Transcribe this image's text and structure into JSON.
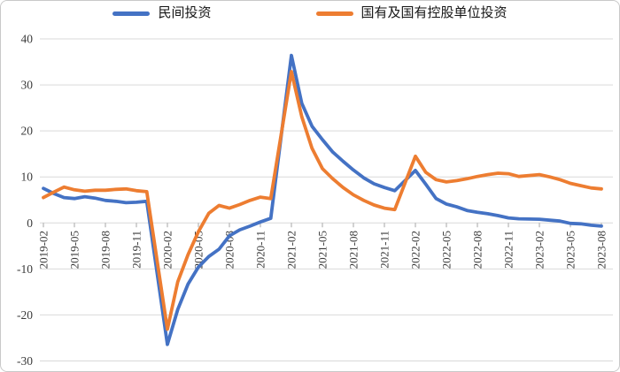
{
  "legend": [
    {
      "label": "民间投资",
      "color": "#4472C4"
    },
    {
      "label": "国有及国有控股单位投资",
      "color": "#ED7D31"
    }
  ],
  "axis": {
    "y_tick_labels": [
      "40",
      "30",
      "20",
      "10",
      "0",
      "-10",
      "-20",
      "-30"
    ],
    "x_tick_labels": [
      "2019-02",
      "2019-05",
      "2019-08",
      "2019-11",
      "2020-02",
      "2020-05",
      "2020-08",
      "2020-11",
      "2021-02",
      "2021-05",
      "2021-08",
      "2021-11",
      "2022-02",
      "2022-05",
      "2022-08",
      "2022-11",
      "2023-02",
      "2023-05",
      "2023-08"
    ]
  },
  "colors": {
    "grid": "#d9d9d9",
    "axis_line": "#d9d9d9",
    "tick": "#a6a6a6",
    "label_text": "#3b3b3b",
    "series_private": "#4472C4",
    "series_soe": "#ED7D31",
    "card_border": "#c9c9c9",
    "background": "#ffffff"
  },
  "chart_data": {
    "type": "line",
    "title": "",
    "xlabel": "",
    "ylabel": "",
    "ylim": [
      -30,
      40
    ],
    "ytick_interval": 10,
    "grid": "horizontal",
    "legend_position": "top",
    "x_axis_type": "monthly dates, January omitted each year",
    "x": [
      "2019-02",
      "2019-03",
      "2019-04",
      "2019-05",
      "2019-06",
      "2019-07",
      "2019-08",
      "2019-09",
      "2019-10",
      "2019-11",
      "2019-12",
      "2020-02",
      "2020-03",
      "2020-04",
      "2020-05",
      "2020-06",
      "2020-07",
      "2020-08",
      "2020-09",
      "2020-10",
      "2020-11",
      "2020-12",
      "2021-02",
      "2021-03",
      "2021-04",
      "2021-05",
      "2021-06",
      "2021-07",
      "2021-08",
      "2021-09",
      "2021-10",
      "2021-11",
      "2021-12",
      "2022-02",
      "2022-03",
      "2022-04",
      "2022-05",
      "2022-06",
      "2022-07",
      "2022-08",
      "2022-09",
      "2022-10",
      "2022-11",
      "2022-12",
      "2023-02",
      "2023-03",
      "2023-04",
      "2023-05",
      "2023-06",
      "2023-07",
      "2023-08"
    ],
    "series": [
      {
        "name": "民间投资",
        "color": "#4472C4",
        "values": [
          7.5,
          6.4,
          5.5,
          5.3,
          5.7,
          5.4,
          4.9,
          4.7,
          4.4,
          4.5,
          4.7,
          -26.4,
          -18.8,
          -13.3,
          -9.6,
          -7.3,
          -5.7,
          -2.8,
          -1.5,
          -0.7,
          0.2,
          1.0,
          36.4,
          26.0,
          21.0,
          18.1,
          15.4,
          13.4,
          11.5,
          9.8,
          8.5,
          7.7,
          7.0,
          11.4,
          8.4,
          5.3,
          4.1,
          3.5,
          2.7,
          2.3,
          2.0,
          1.6,
          1.1,
          0.9,
          0.8,
          0.6,
          0.4,
          -0.1,
          -0.2,
          -0.5,
          -0.7
        ]
      },
      {
        "name": "国有及国有控股单位投资",
        "color": "#ED7D31",
        "values": [
          5.5,
          6.7,
          7.8,
          7.2,
          6.9,
          7.1,
          7.1,
          7.3,
          7.4,
          7.0,
          6.8,
          -23.1,
          -12.8,
          -6.9,
          -1.9,
          2.1,
          3.8,
          3.2,
          4.0,
          4.9,
          5.6,
          5.3,
          32.9,
          23.1,
          16.2,
          11.8,
          9.6,
          7.7,
          6.1,
          4.9,
          3.9,
          3.2,
          2.9,
          14.5,
          11.0,
          9.4,
          8.9,
          9.2,
          9.6,
          10.1,
          10.5,
          10.8,
          10.7,
          10.1,
          10.5,
          10.0,
          9.4,
          8.6,
          8.1,
          7.6,
          7.4
        ]
      }
    ]
  }
}
